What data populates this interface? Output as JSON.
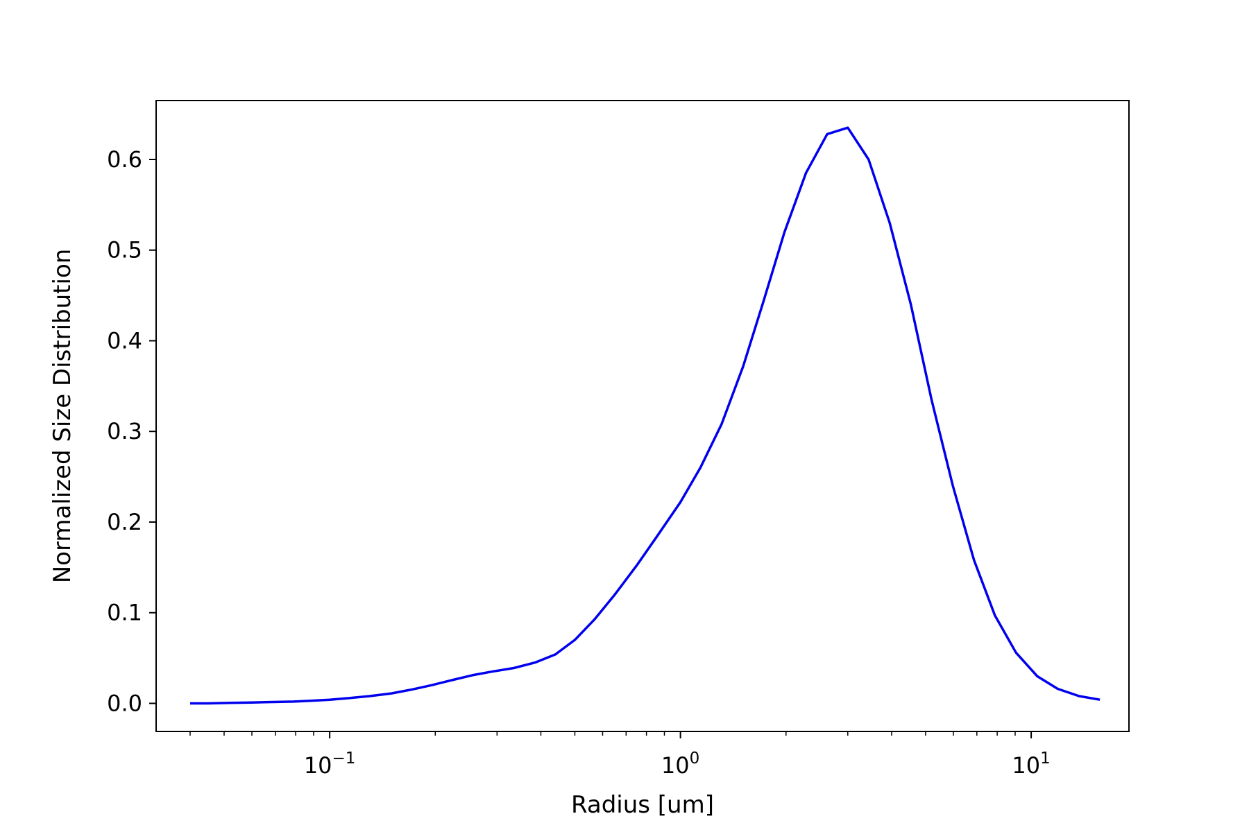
{
  "chart_data": {
    "type": "line",
    "title": "",
    "xlabel": "Radius [um]",
    "ylabel": "Normalized Size Distribution",
    "x_scale": "log",
    "xlim": [
      0.032,
      19
    ],
    "ylim": [
      -0.031,
      0.665
    ],
    "grid": false,
    "line_color": "#0000ee",
    "x_ticks": [
      {
        "value": 0.1,
        "base": "10",
        "exp": "−1"
      },
      {
        "value": 1,
        "base": "10",
        "exp": "0"
      },
      {
        "value": 10,
        "base": "10",
        "exp": "1"
      }
    ],
    "y_ticks": [
      {
        "value": 0.0,
        "label": "0.0"
      },
      {
        "value": 0.1,
        "label": "0.1"
      },
      {
        "value": 0.2,
        "label": "0.2"
      },
      {
        "value": 0.3,
        "label": "0.3"
      },
      {
        "value": 0.4,
        "label": "0.4"
      },
      {
        "value": 0.5,
        "label": "0.5"
      },
      {
        "value": 0.6,
        "label": "0.6"
      }
    ],
    "series": [
      {
        "x": [
          0.04,
          0.045,
          0.052,
          0.06,
          0.069,
          0.079,
          0.09,
          0.1,
          0.115,
          0.13,
          0.15,
          0.17,
          0.195,
          0.225,
          0.255,
          0.29,
          0.335,
          0.385,
          0.44,
          0.5,
          0.57,
          0.65,
          0.75,
          0.86,
          1.0,
          1.14,
          1.31,
          1.51,
          1.73,
          1.98,
          2.28,
          2.62,
          3.0,
          3.44,
          3.95,
          4.54,
          5.2,
          5.98,
          6.87,
          7.88,
          9.05,
          10.4,
          11.9,
          13.7,
          15.7
        ],
        "y": [
          0.0,
          0.0,
          0.0005,
          0.001,
          0.0015,
          0.002,
          0.003,
          0.004,
          0.006,
          0.008,
          0.011,
          0.015,
          0.02,
          0.026,
          0.031,
          0.035,
          0.039,
          0.045,
          0.054,
          0.07,
          0.093,
          0.12,
          0.152,
          0.185,
          0.222,
          0.26,
          0.308,
          0.372,
          0.445,
          0.52,
          0.585,
          0.628,
          0.635,
          0.6,
          0.53,
          0.44,
          0.335,
          0.24,
          0.158,
          0.097,
          0.056,
          0.03,
          0.016,
          0.008,
          0.004
        ]
      }
    ]
  }
}
